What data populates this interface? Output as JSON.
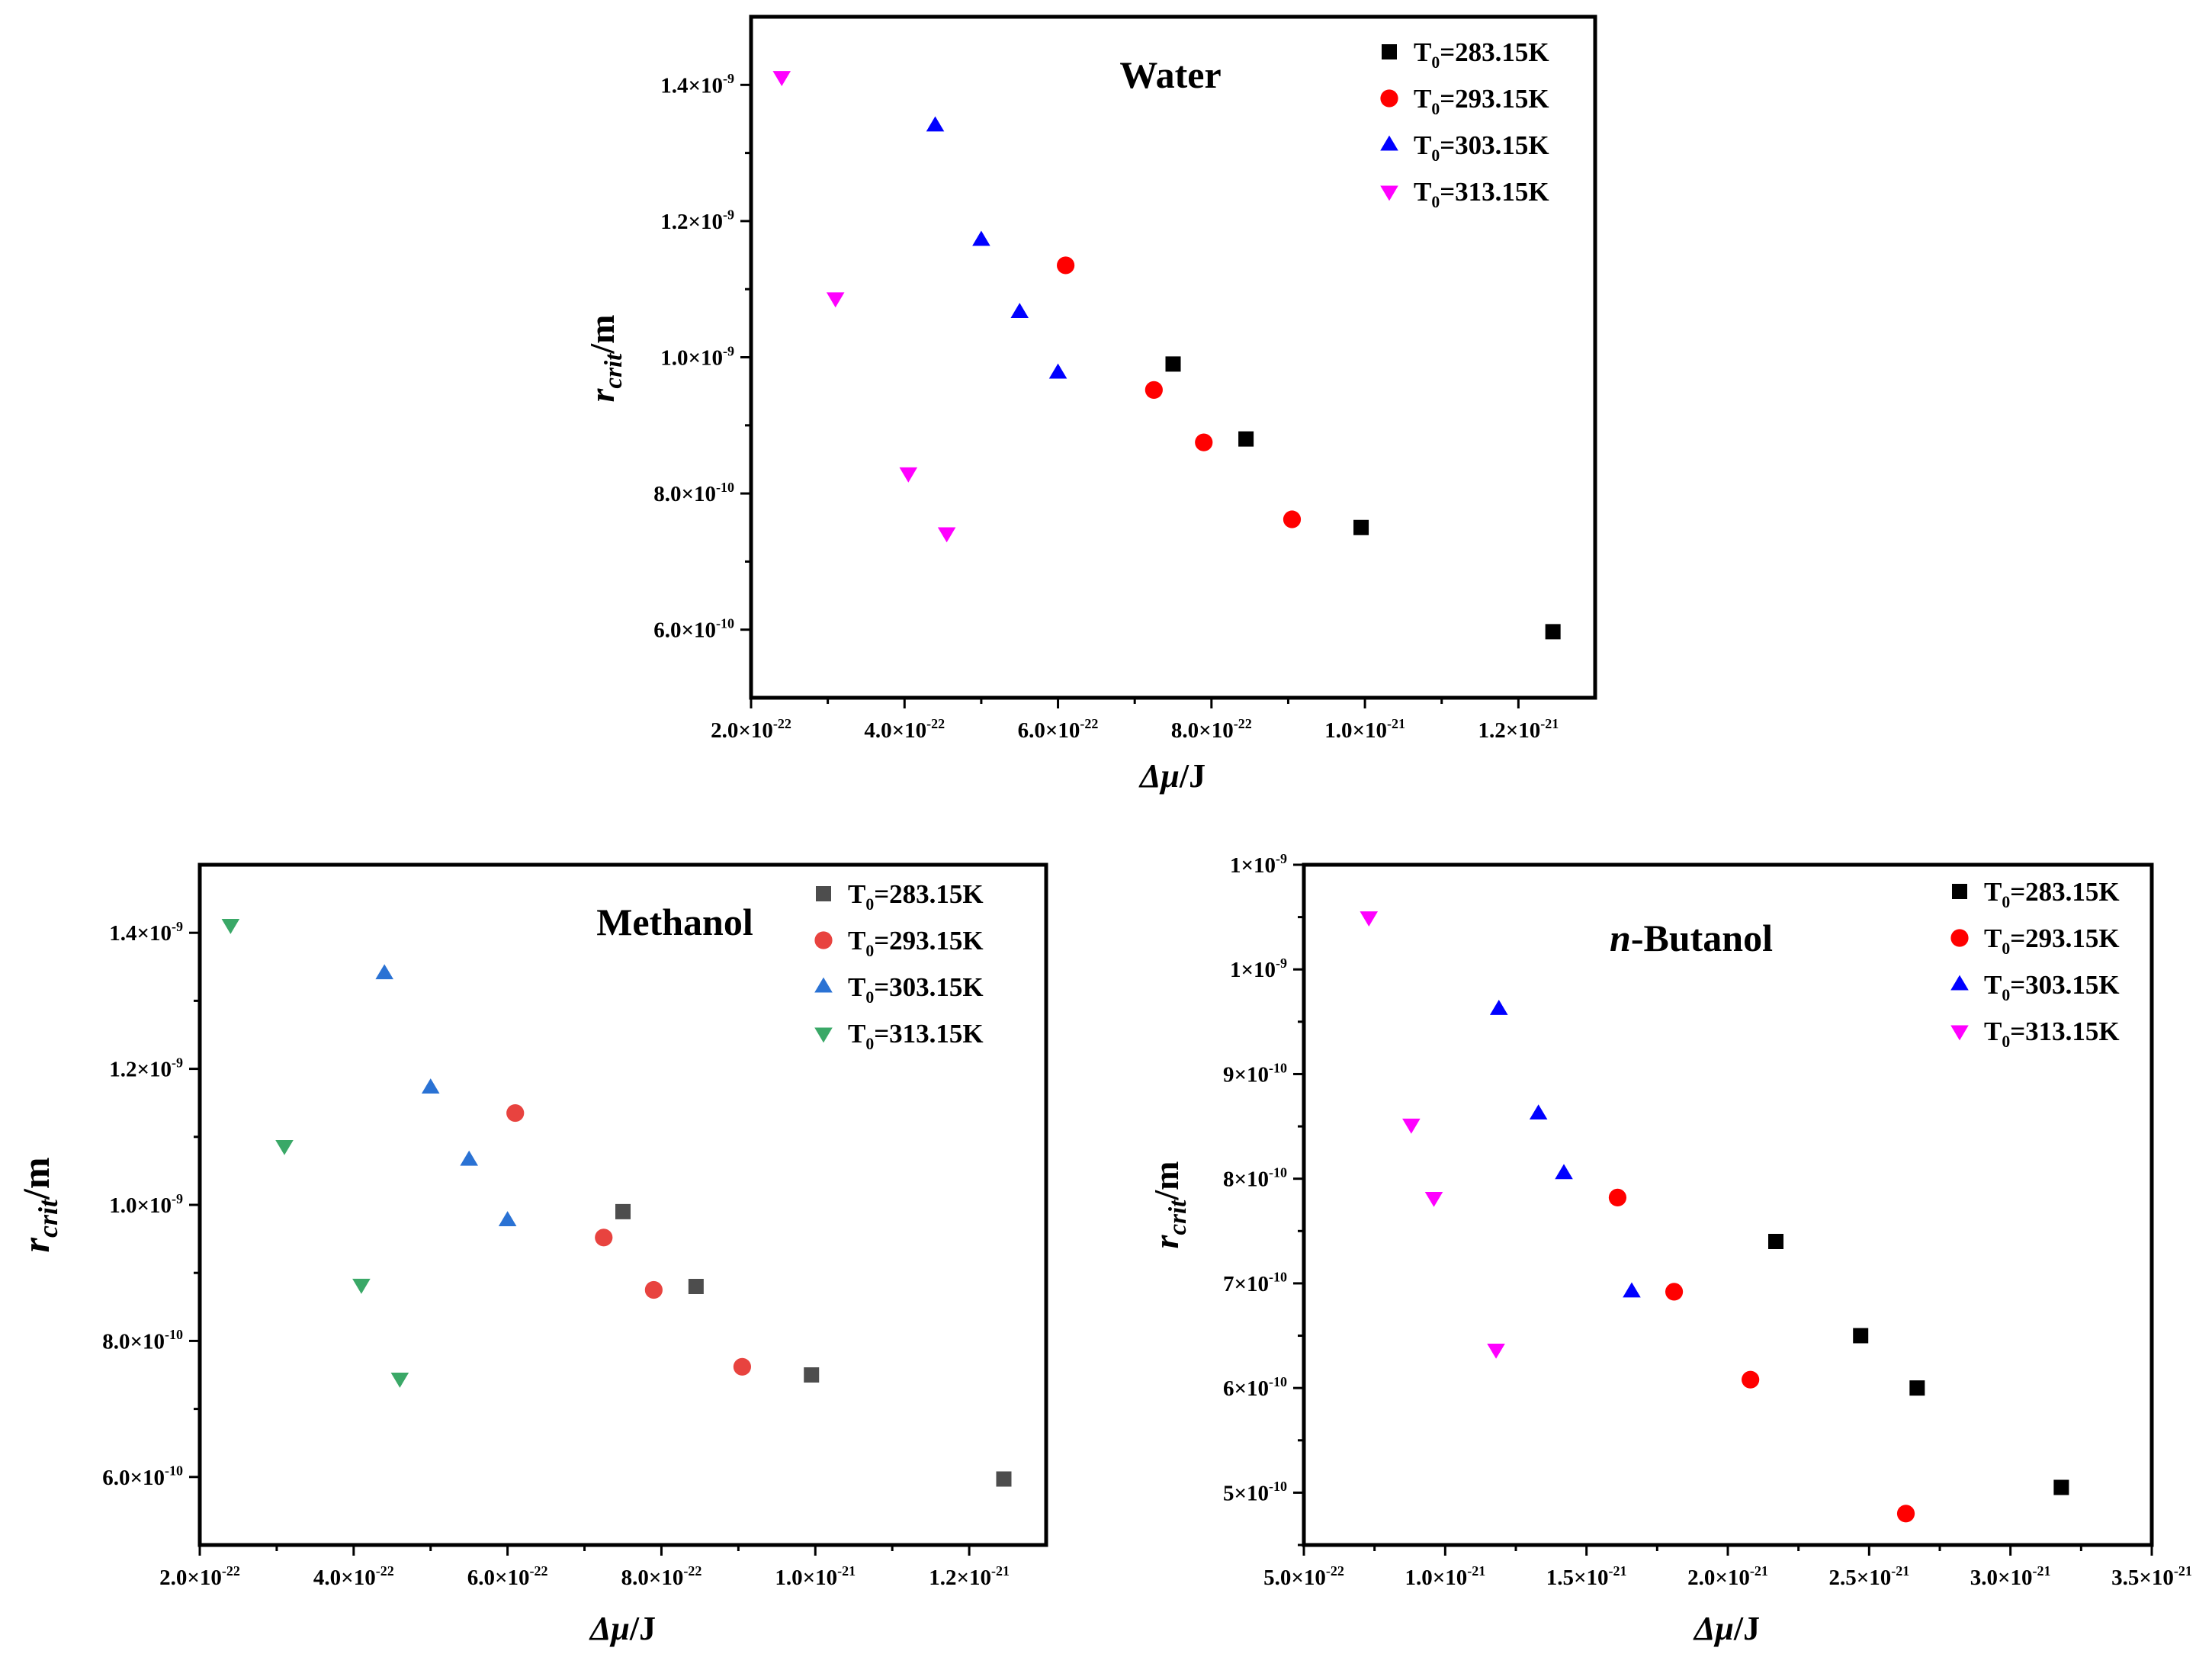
{
  "chart_data": [
    {
      "id": "water",
      "type": "scatter",
      "title": "Water",
      "title_italic_prefix": "",
      "title_rest": "Water",
      "xlabel_symbol": "Δμ",
      "xlabel_unit": "/J",
      "ylabel_symbol": "r",
      "ylabel_sub": "crit",
      "ylabel_unit": "/m",
      "xlim": [
        2e-22,
        1.3e-21
      ],
      "ylim": [
        5e-10,
        1.5e-09
      ],
      "xticks": [
        {
          "value": 2e-22,
          "mantissa": "2.0×10",
          "exp": "-22"
        },
        {
          "value": 4e-22,
          "mantissa": "4.0×10",
          "exp": "-22"
        },
        {
          "value": 6e-22,
          "mantissa": "6.0×10",
          "exp": "-22"
        },
        {
          "value": 8e-22,
          "mantissa": "8.0×10",
          "exp": "-22"
        },
        {
          "value": 1e-21,
          "mantissa": "1.0×10",
          "exp": "-21"
        },
        {
          "value": 1.2e-21,
          "mantissa": "1.2×10",
          "exp": "-21"
        }
      ],
      "xminor": [
        3e-22,
        5e-22,
        7e-22,
        9e-22,
        1.1e-21
      ],
      "yticks": [
        {
          "value": 6e-10,
          "mantissa": "6.0×10",
          "exp": "-10"
        },
        {
          "value": 8e-10,
          "mantissa": "8.0×10",
          "exp": "-10"
        },
        {
          "value": 1e-09,
          "mantissa": "1.0×10",
          "exp": "-9"
        },
        {
          "value": 1.2e-09,
          "mantissa": "1.2×10",
          "exp": "-9"
        },
        {
          "value": 1.4e-09,
          "mantissa": "1.4×10",
          "exp": "-9"
        }
      ],
      "yminor": [
        7e-10,
        9e-10,
        1.1e-09,
        1.3e-09
      ],
      "series": [
        {
          "name": "T0=283.15K",
          "label_main": "T",
          "label_sub": "0",
          "label_rest": "=283.15K",
          "marker": "square",
          "color": "#000000",
          "x": [
            7.5e-22,
            8.45e-22,
            9.95e-22,
            1.245e-21
          ],
          "y": [
            9.9e-10,
            8.8e-10,
            7.5e-10,
            5.97e-10
          ]
        },
        {
          "name": "T0=293.15K",
          "label_main": "T",
          "label_sub": "0",
          "label_rest": "=293.15K",
          "marker": "circle",
          "color": "#ff0000",
          "x": [
            6.1e-22,
            7.25e-22,
            7.9e-22,
            9.05e-22
          ],
          "y": [
            1.135e-09,
            9.52e-10,
            8.75e-10,
            7.62e-10
          ]
        },
        {
          "name": "T0=303.15K",
          "label_main": "T",
          "label_sub": "0",
          "label_rest": "=303.15K",
          "marker": "triangle-up",
          "color": "#0000ff",
          "x": [
            4.4e-22,
            5e-22,
            5.5e-22,
            6e-22
          ],
          "y": [
            1.34e-09,
            1.172e-09,
            1.066e-09,
            9.77e-10
          ]
        },
        {
          "name": "T0=313.15K",
          "label_main": "T",
          "label_sub": "0",
          "label_rest": "=313.15K",
          "marker": "triangle-down",
          "color": "#ff00ff",
          "x": [
            2.4e-22,
            3.1e-22,
            4.05e-22,
            4.55e-22
          ],
          "y": [
            1.412e-09,
            1.087e-09,
            8.3e-10,
            7.42e-10
          ]
        }
      ]
    },
    {
      "id": "methanol",
      "type": "scatter",
      "title": "Methanol",
      "title_italic_prefix": "",
      "title_rest": "Methanol",
      "xlabel_symbol": "Δμ",
      "xlabel_unit": "/J",
      "ylabel_symbol": "r",
      "ylabel_sub": "crit",
      "ylabel_unit": "/m",
      "xlim": [
        2e-22,
        1.3e-21
      ],
      "ylim": [
        5e-10,
        1.5e-09
      ],
      "xticks": [
        {
          "value": 2e-22,
          "mantissa": "2.0×10",
          "exp": "-22"
        },
        {
          "value": 4e-22,
          "mantissa": "4.0×10",
          "exp": "-22"
        },
        {
          "value": 6e-22,
          "mantissa": "6.0×10",
          "exp": "-22"
        },
        {
          "value": 8e-22,
          "mantissa": "8.0×10",
          "exp": "-22"
        },
        {
          "value": 1e-21,
          "mantissa": "1.0×10",
          "exp": "-21"
        },
        {
          "value": 1.2e-21,
          "mantissa": "1.2×10",
          "exp": "-21"
        }
      ],
      "xminor": [
        3e-22,
        5e-22,
        7e-22,
        9e-22,
        1.1e-21
      ],
      "yticks": [
        {
          "value": 6e-10,
          "mantissa": "6.0×10",
          "exp": "-10"
        },
        {
          "value": 8e-10,
          "mantissa": "8.0×10",
          "exp": "-10"
        },
        {
          "value": 1e-09,
          "mantissa": "1.0×10",
          "exp": "-9"
        },
        {
          "value": 1.2e-09,
          "mantissa": "1.2×10",
          "exp": "-9"
        },
        {
          "value": 1.4e-09,
          "mantissa": "1.4×10",
          "exp": "-9"
        }
      ],
      "yminor": [
        7e-10,
        9e-10,
        1.1e-09,
        1.3e-09
      ],
      "series": [
        {
          "name": "T0=283.15K",
          "label_main": "T",
          "label_sub": "0",
          "label_rest": "=283.15K",
          "marker": "square",
          "color": "#4d4d4d",
          "x": [
            7.5e-22,
            8.45e-22,
            9.95e-22,
            1.245e-21
          ],
          "y": [
            9.9e-10,
            8.8e-10,
            7.5e-10,
            5.97e-10
          ]
        },
        {
          "name": "T0=293.15K",
          "label_main": "T",
          "label_sub": "0",
          "label_rest": "=293.15K",
          "marker": "circle",
          "color": "#e8433f",
          "x": [
            6.1e-22,
            7.25e-22,
            7.9e-22,
            9.05e-22
          ],
          "y": [
            1.135e-09,
            9.52e-10,
            8.75e-10,
            7.62e-10
          ]
        },
        {
          "name": "T0=303.15K",
          "label_main": "T",
          "label_sub": "0",
          "label_rest": "=303.15K",
          "marker": "triangle-up",
          "color": "#2a72d4",
          "x": [
            4.4e-22,
            5e-22,
            5.5e-22,
            6e-22
          ],
          "y": [
            1.34e-09,
            1.172e-09,
            1.066e-09,
            9.77e-10
          ]
        },
        {
          "name": "T0=313.15K",
          "label_main": "T",
          "label_sub": "0",
          "label_rest": "=313.15K",
          "marker": "triangle-down",
          "color": "#3aa867",
          "x": [
            2.4e-22,
            3.1e-22,
            4.1e-22,
            4.6e-22
          ],
          "y": [
            1.412e-09,
            1.087e-09,
            8.83e-10,
            7.45e-10
          ]
        }
      ]
    },
    {
      "id": "butanol",
      "type": "scatter",
      "title": "n-Butanol",
      "title_italic_prefix": "n",
      "title_rest": "-Butanol",
      "xlabel_symbol": "Δμ",
      "xlabel_unit": "/J",
      "ylabel_symbol": "r",
      "ylabel_sub": "crit",
      "ylabel_unit": "/m",
      "xlim": [
        5e-22,
        3.5e-21
      ],
      "ylim": [
        4.5e-10,
        1.1e-09
      ],
      "xticks": [
        {
          "value": 5e-22,
          "mantissa": "5.0×10",
          "exp": "-22"
        },
        {
          "value": 1e-21,
          "mantissa": "1.0×10",
          "exp": "-21"
        },
        {
          "value": 1.5e-21,
          "mantissa": "1.5×10",
          "exp": "-21"
        },
        {
          "value": 2e-21,
          "mantissa": "2.0×10",
          "exp": "-21"
        },
        {
          "value": 2.5e-21,
          "mantissa": "2.5×10",
          "exp": "-21"
        },
        {
          "value": 3e-21,
          "mantissa": "3.0×10",
          "exp": "-21"
        },
        {
          "value": 3.5e-21,
          "mantissa": "3.5×10",
          "exp": "-21"
        }
      ],
      "xminor": [
        7.5e-22,
        1.25e-21,
        1.75e-21,
        2.25e-21,
        2.75e-21,
        3.25e-21
      ],
      "yticks": [
        {
          "value": 5e-10,
          "mantissa": "5×10",
          "exp": "-10"
        },
        {
          "value": 6e-10,
          "mantissa": "6×10",
          "exp": "-10"
        },
        {
          "value": 7e-10,
          "mantissa": "7×10",
          "exp": "-10"
        },
        {
          "value": 8e-10,
          "mantissa": "8×10",
          "exp": "-10"
        },
        {
          "value": 9e-10,
          "mantissa": "9×10",
          "exp": "-10"
        },
        {
          "value": 1e-09,
          "mantissa": "1×10",
          "exp": "-9"
        },
        {
          "value": 1.1e-09,
          "mantissa": "1×10",
          "exp": "-9"
        }
      ],
      "yminor": [
        4.5e-10,
        5.5e-10,
        6.5e-10,
        7.5e-10,
        8.5e-10,
        9.5e-10,
        1.05e-09
      ],
      "series": [
        {
          "name": "T0=283.15K",
          "label_main": "T",
          "label_sub": "0",
          "label_rest": "=283.15K",
          "marker": "square",
          "color": "#000000",
          "x": [
            2.17e-21,
            2.47e-21,
            2.67e-21,
            3.18e-21
          ],
          "y": [
            7.4e-10,
            6.5e-10,
            6e-10,
            5.05e-10
          ]
        },
        {
          "name": "T0=293.15K",
          "label_main": "T",
          "label_sub": "0",
          "label_rest": "=293.15K",
          "marker": "circle",
          "color": "#ff0000",
          "x": [
            1.61e-21,
            1.81e-21,
            2.08e-21,
            2.63e-21
          ],
          "y": [
            7.82e-10,
            6.92e-10,
            6.08e-10,
            4.8e-10
          ]
        },
        {
          "name": "T0=303.15K",
          "label_main": "T",
          "label_sub": "0",
          "label_rest": "=303.15K",
          "marker": "triangle-up",
          "color": "#0000ff",
          "x": [
            1.19e-21,
            1.33e-21,
            1.42e-21,
            1.66e-21
          ],
          "y": [
            9.62e-10,
            8.62e-10,
            8.05e-10,
            6.92e-10
          ]
        },
        {
          "name": "T0=313.15K",
          "label_main": "T",
          "label_sub": "0",
          "label_rest": "=313.15K",
          "marker": "triangle-down",
          "color": "#ff00ff",
          "x": [
            7.3e-22,
            8.8e-22,
            9.6e-22,
            1.18e-21
          ],
          "y": [
            1.05e-09,
            8.52e-10,
            7.82e-10,
            6.37e-10
          ]
        }
      ]
    }
  ]
}
